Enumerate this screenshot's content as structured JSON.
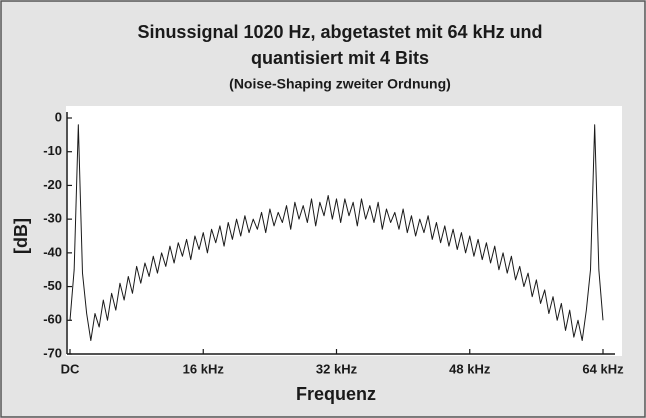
{
  "chart_data": {
    "type": "line",
    "title": [
      "Sinussignal 1020 Hz, abgetastet mit 64 kHz und",
      "quantisiert mit 4 Bits"
    ],
    "subtitle": "(Noise-Shaping zweiter Ordnung)",
    "x_label": "Frequenz",
    "y_label": "[dB]",
    "color": "#1a1a1a",
    "grid": false,
    "xlim": [
      0,
      64
    ],
    "ylim": [
      -70,
      0
    ],
    "xticks": [
      {
        "value": 0,
        "label": "DC"
      },
      {
        "value": 16,
        "label": "16 kHz"
      },
      {
        "value": 32,
        "label": "32 kHz"
      },
      {
        "value": 48,
        "label": "48 kHz"
      },
      {
        "value": 64,
        "label": "64 kHz"
      }
    ],
    "yticks": [
      0,
      -10,
      -20,
      -30,
      -40,
      -50,
      -60,
      -70
    ],
    "x": [
      0,
      0.5,
      1,
      1.5,
      2,
      2.5,
      3,
      3.5,
      4,
      4.5,
      5,
      5.5,
      6,
      6.5,
      7,
      7.5,
      8,
      8.5,
      9,
      9.5,
      10,
      10.5,
      11,
      11.5,
      12,
      12.5,
      13,
      13.5,
      14,
      14.5,
      15,
      15.5,
      16,
      16.5,
      17,
      17.5,
      18,
      18.5,
      19,
      19.5,
      20,
      20.5,
      21,
      21.5,
      22,
      22.5,
      23,
      23.5,
      24,
      24.5,
      25,
      25.5,
      26,
      26.5,
      27,
      27.5,
      28,
      28.5,
      29,
      29.5,
      30,
      30.5,
      31,
      31.5,
      32,
      32.5,
      33,
      33.5,
      34,
      34.5,
      35,
      35.5,
      36,
      36.5,
      37,
      37.5,
      38,
      38.5,
      39,
      39.5,
      40,
      40.5,
      41,
      41.5,
      42,
      42.5,
      43,
      43.5,
      44,
      44.5,
      45,
      45.5,
      46,
      46.5,
      47,
      47.5,
      48,
      48.5,
      49,
      49.5,
      50,
      50.5,
      51,
      51.5,
      52,
      52.5,
      53,
      53.5,
      54,
      54.5,
      55,
      55.5,
      56,
      56.5,
      57,
      57.5,
      58,
      58.5,
      59,
      59.5,
      60,
      60.5,
      61,
      61.5,
      62,
      62.5,
      63,
      63.5,
      64
    ],
    "values": [
      -60,
      -45,
      -2,
      -46,
      -58,
      -66,
      -58,
      -62,
      -54,
      -60,
      -52,
      -57,
      -49,
      -54,
      -47,
      -52,
      -44,
      -49,
      -43,
      -47,
      -41,
      -46,
      -40,
      -44,
      -38,
      -43,
      -37,
      -41,
      -36,
      -42,
      -35,
      -39,
      -34,
      -40,
      -33,
      -37,
      -32,
      -38,
      -31,
      -36,
      -30,
      -35,
      -29,
      -34,
      -30,
      -33,
      -28,
      -34,
      -27,
      -32,
      -28,
      -31,
      -26,
      -33,
      -25,
      -30,
      -26,
      -31,
      -24,
      -32,
      -25,
      -29,
      -23,
      -30,
      -24,
      -31,
      -24,
      -29,
      -25,
      -32,
      -24,
      -30,
      -26,
      -31,
      -25,
      -33,
      -27,
      -31,
      -28,
      -33,
      -27,
      -34,
      -29,
      -35,
      -30,
      -34,
      -29,
      -36,
      -31,
      -37,
      -32,
      -38,
      -33,
      -39,
      -34,
      -40,
      -35,
      -41,
      -36,
      -42,
      -37,
      -43,
      -38,
      -45,
      -40,
      -46,
      -41,
      -48,
      -44,
      -50,
      -46,
      -53,
      -48,
      -55,
      -51,
      -58,
      -53,
      -60,
      -55,
      -63,
      -57,
      -65,
      -60,
      -66,
      -57,
      -45,
      -2,
      -45,
      -60
    ]
  }
}
